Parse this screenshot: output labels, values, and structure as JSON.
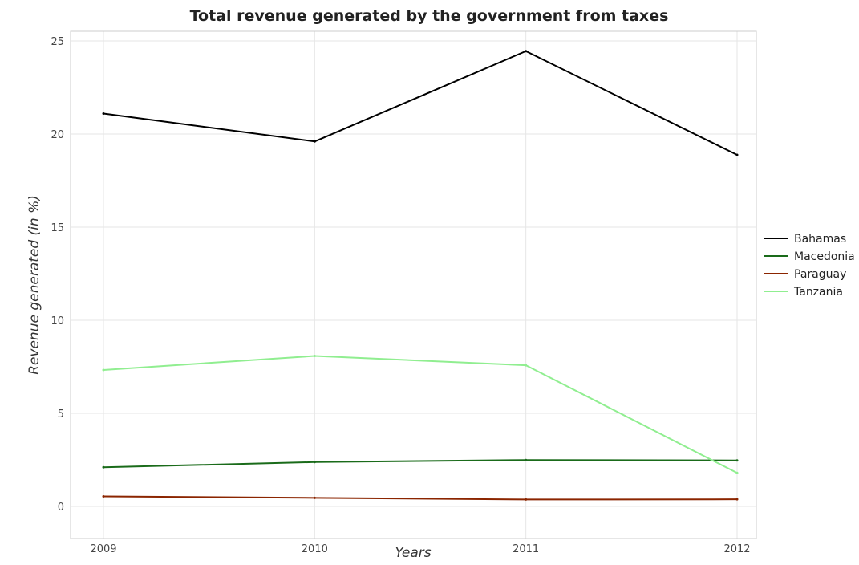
{
  "chart_data": {
    "type": "line",
    "title": "Total revenue generated by the government from taxes",
    "xlabel": "Years",
    "ylabel": "Revenue generated (in %)",
    "categories": [
      "2009",
      "2010",
      "2011",
      "2012"
    ],
    "ylim": [
      0,
      25
    ],
    "yticks": [
      "0",
      "5",
      "10",
      "15",
      "20",
      "25"
    ],
    "grid": true,
    "legend_position": "right",
    "series": [
      {
        "name": "Bahamas",
        "color": "#000000",
        "values": [
          21.1,
          19.6,
          24.45,
          18.88
        ]
      },
      {
        "name": "Macedonia",
        "color": "#1a6b1a",
        "values": [
          2.1,
          2.38,
          2.49,
          2.47
        ]
      },
      {
        "name": "Paraguay",
        "color": "#8b2500",
        "values": [
          0.54,
          0.46,
          0.37,
          0.38
        ]
      },
      {
        "name": "Tanzania",
        "color": "#90ee90",
        "values": [
          7.33,
          8.08,
          7.58,
          1.8
        ]
      }
    ]
  }
}
